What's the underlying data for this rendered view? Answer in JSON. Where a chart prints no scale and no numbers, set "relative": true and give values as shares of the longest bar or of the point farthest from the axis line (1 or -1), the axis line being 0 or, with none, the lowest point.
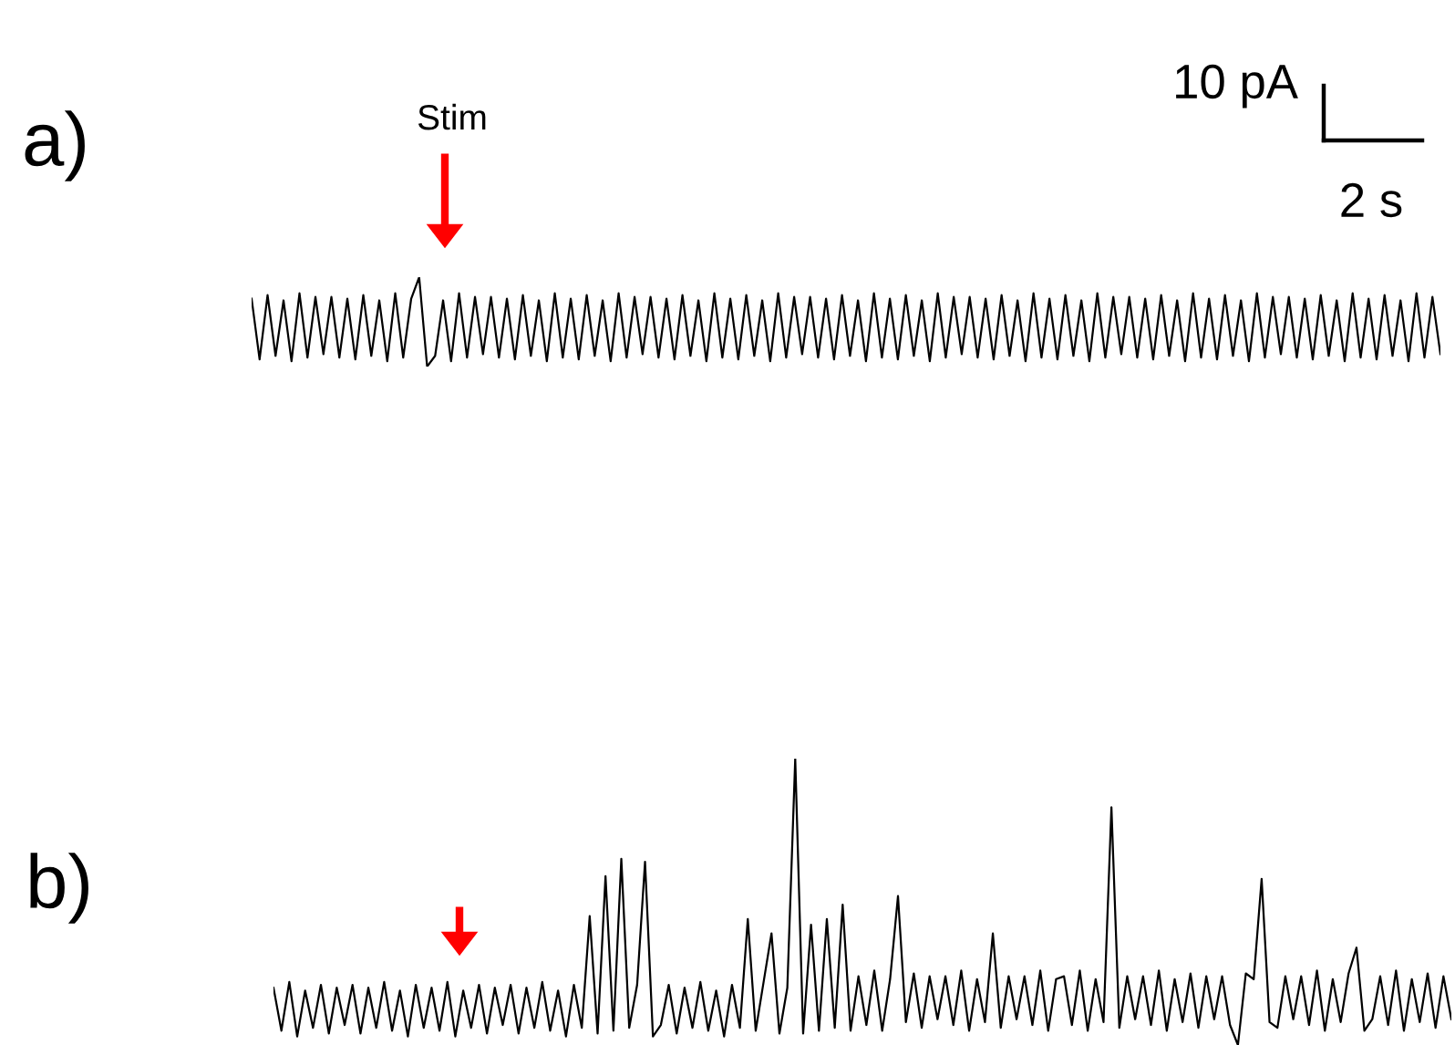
{
  "chart_data": [
    {
      "type": "line",
      "title": "a)",
      "relative": true,
      "color": "#000000",
      "annotations": [
        "Stim",
        "10 pA",
        "2 s"
      ],
      "categories": [
        null,
        null,
        null,
        null,
        null,
        null,
        null,
        null,
        null,
        null,
        null,
        null,
        null,
        null,
        null,
        null,
        null,
        null,
        null,
        null,
        null,
        null,
        null,
        null,
        null,
        null,
        null,
        null,
        null,
        null,
        null,
        null,
        null,
        null,
        null,
        null,
        null,
        null,
        null,
        null,
        null,
        null,
        null,
        null,
        null,
        null,
        null,
        null,
        null,
        null,
        null,
        null,
        null,
        null,
        null,
        null,
        null,
        null,
        null,
        null,
        null,
        null,
        null,
        null,
        null,
        null,
        null,
        null,
        null,
        null,
        null,
        null,
        null,
        null,
        null,
        null,
        null,
        null,
        null,
        null,
        null,
        null,
        null,
        null,
        null,
        null,
        null,
        null,
        null,
        null,
        null,
        null,
        null,
        null,
        null,
        null,
        null,
        null,
        null,
        null,
        null,
        null,
        null,
        null,
        null,
        null,
        null,
        null,
        null,
        null,
        null,
        null,
        null,
        null,
        null,
        null,
        null,
        null,
        null,
        null,
        null,
        null,
        null,
        null,
        null,
        null,
        null,
        null,
        null,
        null,
        null,
        null,
        null,
        null,
        null,
        null,
        null,
        null,
        null,
        null,
        null,
        null,
        null,
        null,
        null,
        null,
        null,
        null,
        null,
        null
      ],
      "values": [
        0.76,
        0.08,
        0.8,
        0.12,
        0.74,
        0.06,
        0.82,
        0.1,
        0.78,
        0.14,
        0.78,
        0.1,
        0.76,
        0.08,
        0.8,
        0.12,
        0.74,
        0.06,
        0.82,
        0.1,
        0.76,
        1.0,
        0,
        0.12,
        0.74,
        0.06,
        0.82,
        0.1,
        0.78,
        0.14,
        0.78,
        0.1,
        0.76,
        0.08,
        0.8,
        0.12,
        0.74,
        0.06,
        0.82,
        0.1,
        0.76,
        0.08,
        0.8,
        0.12,
        0.74,
        0.06,
        0.82,
        0.1,
        0.78,
        0.14,
        0.78,
        0.1,
        0.76,
        0.08,
        0.8,
        0.12,
        0.74,
        0.06,
        0.82,
        0.1,
        0.76,
        0.08,
        0.8,
        0.12,
        0.74,
        0.06,
        0.82,
        0.1,
        0.78,
        0.14,
        0.78,
        0.1,
        0.76,
        0.08,
        0.8,
        0.12,
        0.74,
        0.06,
        0.82,
        0.1,
        0.76,
        0.08,
        0.8,
        0.12,
        0.74,
        0.06,
        0.82,
        0.1,
        0.78,
        0.14,
        0.78,
        0.1,
        0.76,
        0.08,
        0.8,
        0.12,
        0.74,
        0.06,
        0.82,
        0.1,
        0.76,
        0.08,
        0.8,
        0.12,
        0.74,
        0.06,
        0.82,
        0.1,
        0.78,
        0.14,
        0.78,
        0.1,
        0.76,
        0.08,
        0.8,
        0.12,
        0.74,
        0.06,
        0.82,
        0.1,
        0.76,
        0.08,
        0.8,
        0.12,
        0.74,
        0.06,
        0.82,
        0.1,
        0.78,
        0.14,
        0.78,
        0.1,
        0.76,
        0.08,
        0.8,
        0.12,
        0.74,
        0.06,
        0.82,
        0.1,
        0.76,
        0.08,
        0.8,
        0.12,
        0.74,
        0.06,
        0.82,
        0.1,
        0.78,
        0.14
      ]
    },
    {
      "type": "line",
      "title": "b)",
      "relative": true,
      "color": "#000000",
      "categories": [
        null,
        null,
        null,
        null,
        null,
        null,
        null,
        null,
        null,
        null,
        null,
        null,
        null,
        null,
        null,
        null,
        null,
        null,
        null,
        null,
        null,
        null,
        null,
        null,
        null,
        null,
        null,
        null,
        null,
        null,
        null,
        null,
        null,
        null,
        null,
        null,
        null,
        null,
        null,
        null,
        null,
        null,
        null,
        null,
        null,
        null,
        null,
        null,
        null,
        null,
        null,
        null,
        null,
        null,
        null,
        null,
        null,
        null,
        null,
        null,
        null,
        null,
        null,
        null,
        null,
        null,
        null,
        null,
        null,
        null,
        null,
        null,
        null,
        null,
        null,
        null,
        null,
        null,
        null,
        null,
        null,
        null,
        null,
        null,
        null,
        null,
        null,
        null,
        null,
        null,
        null,
        null,
        null,
        null,
        null,
        null,
        null,
        null,
        null,
        null,
        null,
        null,
        null,
        null,
        null,
        null,
        null,
        null,
        null,
        null,
        null,
        null,
        null,
        null,
        null,
        null,
        null,
        null,
        null,
        null,
        null,
        null,
        null,
        null,
        null,
        null,
        null,
        null,
        null,
        null,
        null,
        null,
        null,
        null,
        null,
        null,
        null,
        null,
        null,
        null,
        null,
        null,
        null,
        null,
        null,
        null,
        null,
        null,
        null,
        null
      ],
      "values": [
        0.2,
        0.05,
        0.22,
        0.03,
        0.19,
        0.06,
        0.21,
        0.04,
        0.2,
        0.07,
        0.21,
        0.04,
        0.2,
        0.06,
        0.22,
        0.05,
        0.19,
        0.03,
        0.21,
        0.06,
        0.2,
        0.05,
        0.22,
        0.03,
        0.19,
        0.06,
        0.21,
        0.04,
        0.2,
        0.07,
        0.21,
        0.04,
        0.2,
        0.06,
        0.22,
        0.05,
        0.19,
        0.03,
        0.21,
        0.06,
        0.45,
        0.04,
        0.59,
        0.05,
        0.65,
        0.06,
        0.21,
        0.64,
        0.03,
        0.07,
        0.21,
        0.04,
        0.2,
        0.06,
        0.22,
        0.05,
        0.19,
        0.03,
        0.21,
        0.06,
        0.44,
        0.05,
        0.22,
        0.39,
        0.04,
        0.2,
        1.0,
        0.04,
        0.42,
        0.05,
        0.44,
        0.06,
        0.49,
        0.05,
        0.24,
        0.07,
        0.26,
        0.05,
        0.23,
        0.52,
        0.08,
        0.25,
        0.06,
        0.24,
        0.09,
        0.24,
        0.07,
        0.26,
        0.05,
        0.23,
        0.08,
        0.39,
        0.06,
        0.24,
        0.09,
        0.24,
        0.07,
        0.26,
        0.05,
        0.23,
        0.24,
        0.07,
        0.26,
        0.05,
        0.23,
        0.08,
        0.83,
        0.06,
        0.24,
        0.09,
        0.24,
        0.07,
        0.26,
        0.05,
        0.23,
        0.08,
        0.25,
        0.06,
        0.24,
        0.09,
        0.24,
        0.07,
        0,
        0.25,
        0.23,
        0.58,
        0.08,
        0.06,
        0.24,
        0.09,
        0.24,
        0.07,
        0.26,
        0.05,
        0.23,
        0.08,
        0.25,
        0.34,
        0.05,
        0.09,
        0.24,
        0.07,
        0.26,
        0.05,
        0.23,
        0.08,
        0.25,
        0.06,
        0.24,
        0.09
      ]
    }
  ]
}
